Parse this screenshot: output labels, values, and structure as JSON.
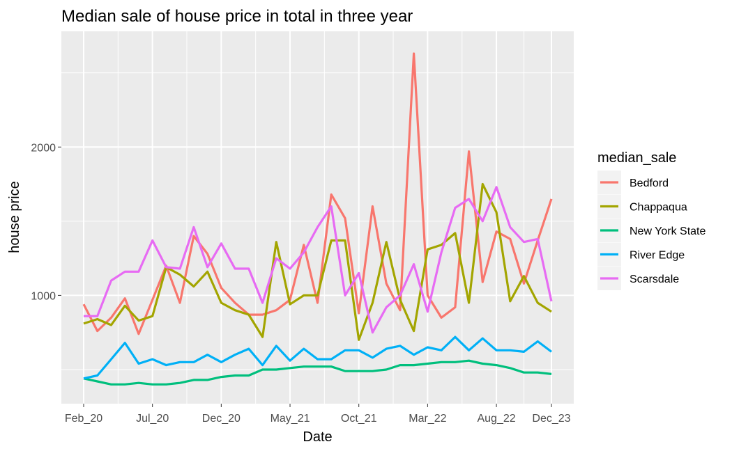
{
  "chart_data": {
    "type": "line",
    "title": "Median sale of house price in total in three year",
    "xlabel": "Date",
    "ylabel": "house price",
    "legend_title": "median_sale",
    "legend_position": "right",
    "grid": true,
    "ylim": [
      270,
      2780
    ],
    "yticks": [
      1000,
      2000
    ],
    "x_tick_labels": [
      "Feb_20",
      "Jul_20",
      "Dec_20",
      "May_21",
      "Oct_21",
      "Mar_22",
      "Aug_22",
      "Dec_23"
    ],
    "x_tick_index": [
      0,
      5,
      10,
      15,
      20,
      25,
      30,
      34
    ],
    "series": [
      {
        "name": "Bedford",
        "color": "#F8766D",
        "values": [
          940,
          760,
          850,
          980,
          740,
          970,
          1200,
          950,
          1400,
          1280,
          1050,
          950,
          870,
          870,
          900,
          970,
          1340,
          950,
          1680,
          1520,
          880,
          1600,
          1080,
          900,
          2630,
          1000,
          850,
          920,
          1970,
          1090,
          1430,
          1380,
          1080,
          1370,
          1650
        ]
      },
      {
        "name": "Chappaqua",
        "color": "#A3A500",
        "values": [
          810,
          840,
          800,
          930,
          830,
          860,
          1190,
          1140,
          1060,
          1160,
          950,
          900,
          870,
          720,
          1360,
          940,
          1000,
          1000,
          1370,
          1370,
          700,
          950,
          1360,
          970,
          760,
          1310,
          1340,
          1420,
          950,
          1750,
          1560,
          960,
          1130,
          950,
          890
        ]
      },
      {
        "name": "New York State",
        "color": "#00BF7D",
        "values": [
          440,
          420,
          400,
          400,
          410,
          400,
          400,
          410,
          430,
          430,
          450,
          460,
          460,
          500,
          500,
          510,
          520,
          520,
          520,
          490,
          490,
          490,
          500,
          530,
          530,
          540,
          550,
          550,
          560,
          540,
          530,
          510,
          480,
          480,
          470
        ]
      },
      {
        "name": "River Edge",
        "color": "#00B0F6",
        "values": [
          440,
          460,
          570,
          680,
          540,
          570,
          530,
          550,
          550,
          600,
          550,
          600,
          640,
          530,
          660,
          560,
          640,
          570,
          570,
          630,
          630,
          580,
          640,
          660,
          600,
          650,
          630,
          720,
          630,
          710,
          630,
          630,
          620,
          690,
          620
        ]
      },
      {
        "name": "Scarsdale",
        "color": "#E76BF3",
        "values": [
          860,
          860,
          1100,
          1160,
          1160,
          1370,
          1190,
          1180,
          1460,
          1190,
          1350,
          1180,
          1180,
          950,
          1250,
          1180,
          1290,
          1460,
          1600,
          1000,
          1150,
          750,
          920,
          1000,
          1210,
          890,
          1290,
          1590,
          1650,
          1500,
          1730,
          1460,
          1360,
          1380,
          960
        ]
      }
    ]
  }
}
